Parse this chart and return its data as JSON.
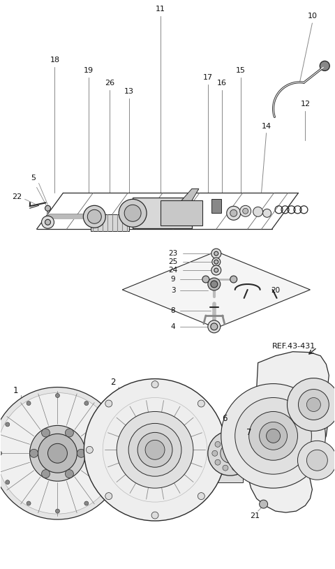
{
  "bg_color": "#ffffff",
  "line_color": "#2a2a2a",
  "gray1": "#888888",
  "gray2": "#bbbbbb",
  "gray3": "#dddddd",
  "fig_width": 4.8,
  "fig_height": 8.15,
  "dpi": 100
}
